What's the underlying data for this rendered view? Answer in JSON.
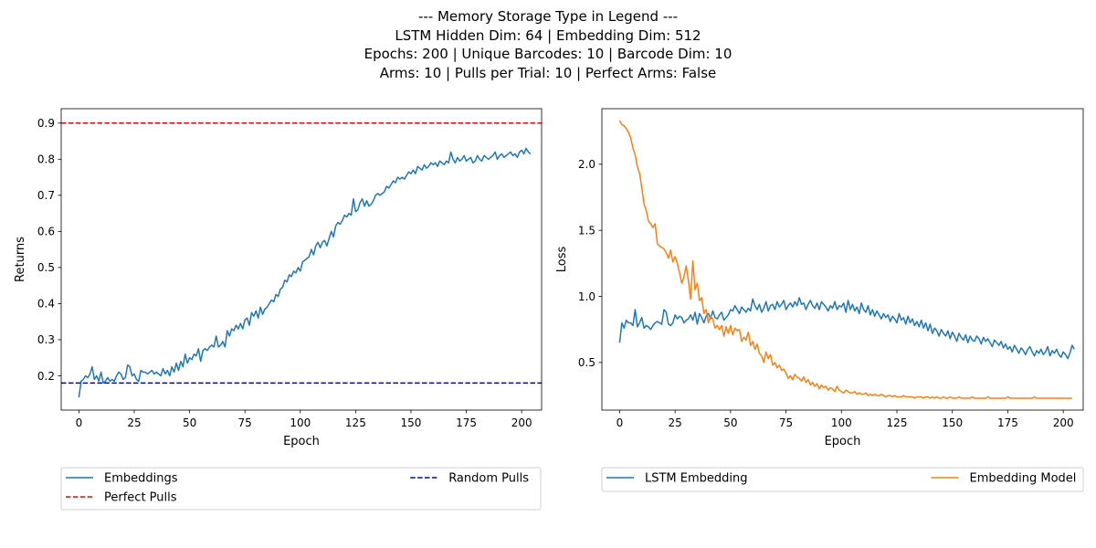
{
  "title_lines": [
    "--- Memory Storage Type in Legend ---",
    "LSTM Hidden Dim: 64 | Embedding Dim: 512",
    "Epochs: 200 | Unique Barcodes: 10 | Barcode Dim: 10",
    "Arms: 10 | Pulls per Trial: 10 | Perfect Arms: False"
  ],
  "colors": {
    "blue": "#1f77b4",
    "orange": "#ff7f0e",
    "red": "#ff0000",
    "darkblue": "#0000cd"
  },
  "chart_data": [
    {
      "type": "line",
      "xlabel": "Epoch",
      "ylabel": "Returns",
      "xlim": [
        -8,
        209
      ],
      "ylim": [
        0.105,
        0.94
      ],
      "xticks": [
        0,
        25,
        50,
        75,
        100,
        125,
        150,
        175,
        200
      ],
      "yticks": [
        0.2,
        0.3,
        0.4,
        0.5,
        0.6,
        0.7,
        0.8,
        0.9
      ],
      "legend_position": "below",
      "series": [
        {
          "name": "Embeddings",
          "color": "#1f77b4",
          "style": "solid",
          "x_start": 0,
          "x_step": 1,
          "values": [
            0.14,
            0.185,
            0.19,
            0.2,
            0.195,
            0.205,
            0.225,
            0.19,
            0.2,
            0.185,
            0.21,
            0.18,
            0.185,
            0.195,
            0.185,
            0.19,
            0.185,
            0.2,
            0.21,
            0.205,
            0.19,
            0.195,
            0.23,
            0.225,
            0.2,
            0.205,
            0.19,
            0.185,
            0.215,
            0.21,
            0.21,
            0.205,
            0.21,
            0.215,
            0.205,
            0.21,
            0.205,
            0.2,
            0.22,
            0.205,
            0.215,
            0.2,
            0.225,
            0.21,
            0.235,
            0.215,
            0.24,
            0.225,
            0.26,
            0.235,
            0.25,
            0.245,
            0.26,
            0.255,
            0.275,
            0.24,
            0.27,
            0.275,
            0.27,
            0.28,
            0.285,
            0.28,
            0.31,
            0.28,
            0.285,
            0.295,
            0.28,
            0.325,
            0.31,
            0.33,
            0.325,
            0.34,
            0.33,
            0.345,
            0.33,
            0.355,
            0.36,
            0.34,
            0.375,
            0.365,
            0.38,
            0.36,
            0.39,
            0.37,
            0.385,
            0.39,
            0.4,
            0.41,
            0.405,
            0.425,
            0.42,
            0.44,
            0.445,
            0.465,
            0.46,
            0.48,
            0.475,
            0.49,
            0.485,
            0.5,
            0.49,
            0.515,
            0.52,
            0.525,
            0.53,
            0.55,
            0.535,
            0.56,
            0.57,
            0.555,
            0.57,
            0.575,
            0.56,
            0.58,
            0.6,
            0.585,
            0.615,
            0.625,
            0.62,
            0.63,
            0.645,
            0.64,
            0.65,
            0.645,
            0.69,
            0.655,
            0.66,
            0.68,
            0.69,
            0.67,
            0.685,
            0.67,
            0.675,
            0.685,
            0.7,
            0.705,
            0.7,
            0.705,
            0.71,
            0.725,
            0.72,
            0.73,
            0.74,
            0.735,
            0.75,
            0.745,
            0.75,
            0.745,
            0.755,
            0.765,
            0.76,
            0.77,
            0.76,
            0.78,
            0.775,
            0.77,
            0.785,
            0.775,
            0.78,
            0.79,
            0.785,
            0.79,
            0.78,
            0.795,
            0.79,
            0.785,
            0.795,
            0.79,
            0.82,
            0.8,
            0.79,
            0.805,
            0.795,
            0.8,
            0.81,
            0.795,
            0.8,
            0.805,
            0.79,
            0.795,
            0.81,
            0.8,
            0.795,
            0.81,
            0.805,
            0.8,
            0.805,
            0.81,
            0.82,
            0.8,
            0.81,
            0.815,
            0.805,
            0.81,
            0.815,
            0.82,
            0.81,
            0.815,
            0.805,
            0.82,
            0.825,
            0.815,
            0.83,
            0.82,
            0.815
          ]
        },
        {
          "name": "Perfect Pulls",
          "color": "#ff0000",
          "style": "dashed",
          "hline": 0.9
        },
        {
          "name": "Random Pulls",
          "color": "#0000cd",
          "style": "dashed",
          "hline": 0.18
        }
      ]
    },
    {
      "type": "line",
      "xlabel": "Epoch",
      "ylabel": "Loss",
      "xlim": [
        -8,
        209
      ],
      "ylim": [
        0.14,
        2.42
      ],
      "xticks": [
        0,
        25,
        50,
        75,
        100,
        125,
        150,
        175,
        200
      ],
      "yticks": [
        0.5,
        1.0,
        1.5,
        2.0
      ],
      "legend_position": "below",
      "series": [
        {
          "name": "LSTM Embedding",
          "color": "#1f77b4",
          "style": "solid",
          "x_start": 0,
          "x_step": 1,
          "values": [
            0.65,
            0.8,
            0.76,
            0.82,
            0.8,
            0.8,
            0.78,
            0.9,
            0.77,
            0.8,
            0.84,
            0.76,
            0.78,
            0.77,
            0.75,
            0.78,
            0.8,
            0.81,
            0.8,
            0.79,
            0.9,
            0.88,
            0.79,
            0.78,
            0.8,
            0.86,
            0.83,
            0.85,
            0.84,
            0.8,
            0.82,
            0.83,
            0.86,
            0.82,
            0.88,
            0.79,
            0.87,
            0.84,
            0.8,
            0.85,
            0.87,
            0.83,
            0.89,
            0.84,
            0.83,
            0.86,
            0.88,
            0.82,
            0.84,
            0.86,
            0.9,
            0.89,
            0.93,
            0.9,
            0.87,
            0.92,
            0.9,
            0.88,
            0.91,
            0.89,
            0.98,
            0.93,
            0.9,
            0.94,
            0.88,
            0.91,
            0.96,
            0.89,
            0.93,
            0.94,
            0.9,
            0.96,
            0.92,
            0.94,
            0.97,
            0.9,
            0.93,
            0.95,
            0.92,
            0.96,
            0.93,
            0.99,
            0.94,
            0.95,
            0.9,
            0.94,
            0.97,
            0.93,
            0.91,
            0.95,
            0.9,
            0.96,
            0.94,
            0.92,
            0.89,
            0.93,
            0.91,
            0.96,
            0.9,
            0.93,
            0.92,
            0.95,
            0.88,
            0.97,
            0.9,
            0.94,
            0.89,
            0.92,
            0.87,
            0.95,
            0.9,
            0.88,
            0.93,
            0.86,
            0.9,
            0.85,
            0.89,
            0.86,
            0.83,
            0.87,
            0.84,
            0.86,
            0.81,
            0.85,
            0.83,
            0.8,
            0.87,
            0.82,
            0.84,
            0.79,
            0.85,
            0.8,
            0.83,
            0.78,
            0.81,
            0.77,
            0.82,
            0.76,
            0.8,
            0.74,
            0.79,
            0.72,
            0.76,
            0.74,
            0.7,
            0.75,
            0.72,
            0.7,
            0.74,
            0.68,
            0.73,
            0.7,
            0.66,
            0.72,
            0.69,
            0.67,
            0.71,
            0.65,
            0.7,
            0.67,
            0.66,
            0.7,
            0.68,
            0.64,
            0.69,
            0.66,
            0.68,
            0.65,
            0.62,
            0.67,
            0.65,
            0.63,
            0.66,
            0.61,
            0.64,
            0.6,
            0.62,
            0.58,
            0.63,
            0.6,
            0.57,
            0.61,
            0.59,
            0.56,
            0.6,
            0.62,
            0.58,
            0.55,
            0.59,
            0.57,
            0.6,
            0.56,
            0.58,
            0.62,
            0.55,
            0.59,
            0.57,
            0.6,
            0.56,
            0.54,
            0.58,
            0.56,
            0.53,
            0.57,
            0.63,
            0.6
          ]
        },
        {
          "name": "Embedding Model",
          "color": "#ff7f0e",
          "style": "solid",
          "x_start": 0,
          "x_step": 1,
          "values": [
            2.33,
            2.3,
            2.29,
            2.27,
            2.24,
            2.2,
            2.12,
            2.07,
            1.98,
            1.93,
            1.82,
            1.7,
            1.65,
            1.57,
            1.55,
            1.52,
            1.55,
            1.4,
            1.38,
            1.37,
            1.36,
            1.33,
            1.29,
            1.35,
            1.26,
            1.3,
            1.25,
            1.18,
            1.1,
            1.15,
            1.23,
            1.12,
            0.98,
            1.27,
            1.05,
            1.1,
            0.97,
            0.99,
            0.87,
            0.9,
            0.8,
            0.85,
            0.83,
            0.76,
            0.78,
            0.75,
            0.78,
            0.7,
            0.77,
            0.72,
            0.78,
            0.71,
            0.76,
            0.74,
            0.75,
            0.66,
            0.69,
            0.67,
            0.73,
            0.63,
            0.66,
            0.6,
            0.64,
            0.57,
            0.55,
            0.5,
            0.58,
            0.53,
            0.56,
            0.48,
            0.5,
            0.46,
            0.48,
            0.44,
            0.45,
            0.42,
            0.38,
            0.4,
            0.37,
            0.41,
            0.39,
            0.38,
            0.36,
            0.39,
            0.35,
            0.37,
            0.33,
            0.35,
            0.32,
            0.34,
            0.3,
            0.33,
            0.31,
            0.32,
            0.29,
            0.31,
            0.3,
            0.28,
            0.32,
            0.29,
            0.28,
            0.27,
            0.29,
            0.28,
            0.27,
            0.27,
            0.28,
            0.26,
            0.27,
            0.26,
            0.26,
            0.27,
            0.25,
            0.26,
            0.25,
            0.26,
            0.25,
            0.25,
            0.26,
            0.25,
            0.24,
            0.25,
            0.25,
            0.24,
            0.25,
            0.24,
            0.24,
            0.24,
            0.25,
            0.24,
            0.24,
            0.24,
            0.24,
            0.23,
            0.24,
            0.24,
            0.24,
            0.23,
            0.24,
            0.24,
            0.23,
            0.24,
            0.23,
            0.24,
            0.23,
            0.23,
            0.24,
            0.23,
            0.23,
            0.24,
            0.23,
            0.23,
            0.23,
            0.24,
            0.23,
            0.23,
            0.23,
            0.23,
            0.23,
            0.24,
            0.23,
            0.23,
            0.23,
            0.23,
            0.23,
            0.23,
            0.24,
            0.23,
            0.23,
            0.23,
            0.23,
            0.23,
            0.23,
            0.23,
            0.23,
            0.24,
            0.23,
            0.23,
            0.23,
            0.23,
            0.23,
            0.23,
            0.23,
            0.23,
            0.23,
            0.23,
            0.23,
            0.24,
            0.23,
            0.23,
            0.23,
            0.23,
            0.23,
            0.23,
            0.23,
            0.23,
            0.23,
            0.23,
            0.23,
            0.23,
            0.23,
            0.23,
            0.23,
            0.23,
            0.23
          ]
        }
      ]
    }
  ]
}
